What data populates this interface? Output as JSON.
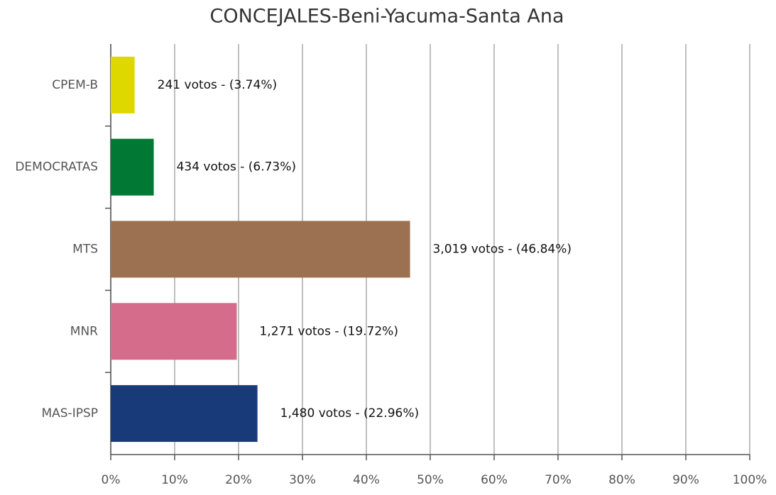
{
  "chart_data": {
    "type": "hbar",
    "title": "CONCEJALES-Beni-Yacuma-Santa Ana",
    "categories": [
      "CPEM-B",
      "DEMOCRATAS",
      "MTS",
      "MNR",
      "MAS-IPSP"
    ],
    "values": [
      3.74,
      6.73,
      46.84,
      19.72,
      22.96
    ],
    "value_labels": [
      "241 votos - (3.74%)",
      "434 votos - (6.73%)",
      "3,019 votos - (46.84%)",
      "1,271 votos - (19.72%)",
      "1,480 votos - (22.96%)"
    ],
    "colors": [
      "#dfd800",
      "#017935",
      "#9c7152",
      "#d66c8b",
      "#183a78"
    ],
    "xlim": [
      0,
      100
    ],
    "xticks": [
      {
        "value": 0,
        "label": "0%"
      },
      {
        "value": 10,
        "label": "10%"
      },
      {
        "value": 20,
        "label": "20%"
      },
      {
        "value": 30,
        "label": "30%"
      },
      {
        "value": 40,
        "label": "40%"
      },
      {
        "value": 50,
        "label": "50%"
      },
      {
        "value": 60,
        "label": "60%"
      },
      {
        "value": 70,
        "label": "70%"
      },
      {
        "value": 80,
        "label": "80%"
      },
      {
        "value": 90,
        "label": "90%"
      },
      {
        "value": 100,
        "label": "100%"
      }
    ],
    "grid": true
  }
}
